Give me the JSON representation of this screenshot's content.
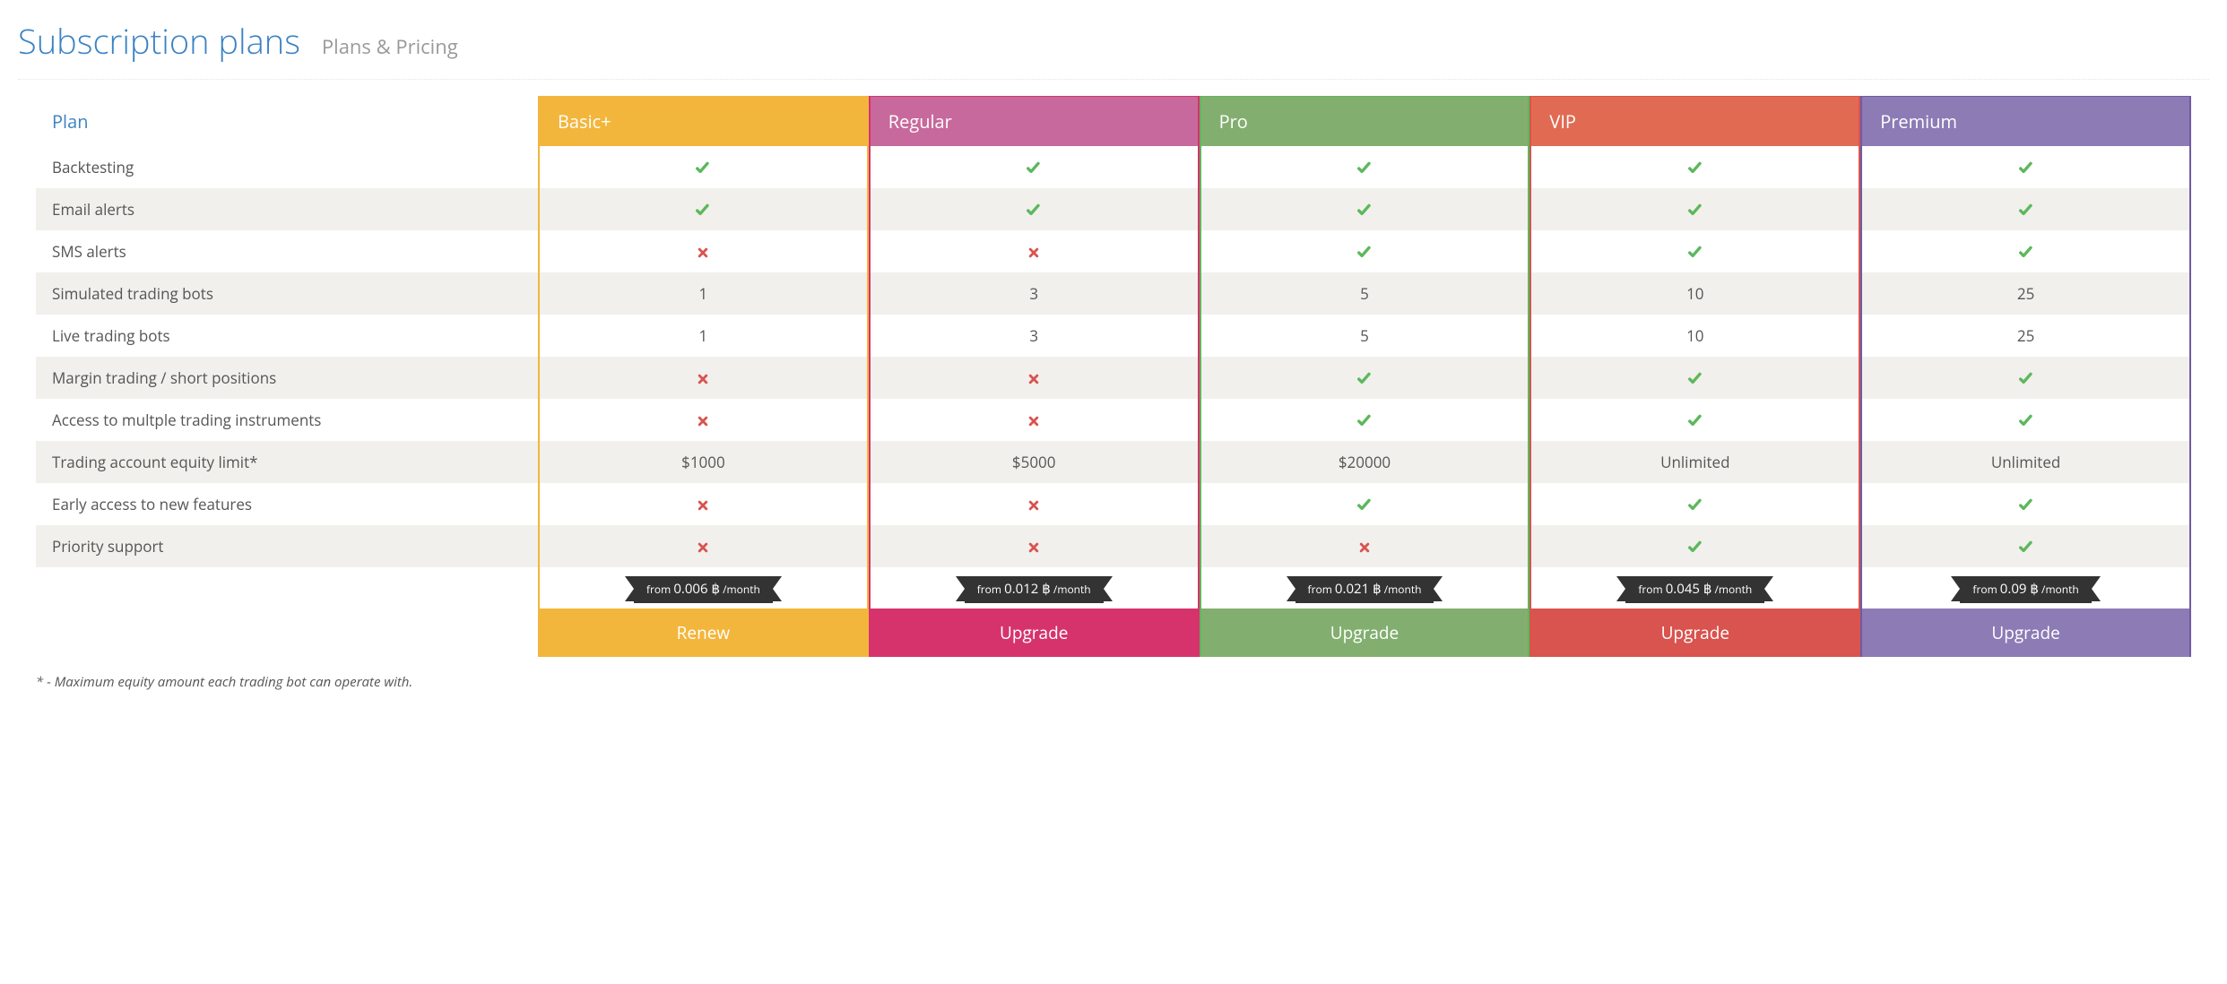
{
  "header": {
    "title": "Subscription plans",
    "subtitle": "Plans & Pricing"
  },
  "table": {
    "plan_column_label": "Plan",
    "colors": {
      "check": "#5cb85c",
      "cross": "#d9534f",
      "ribbon_bg": "#333333",
      "ribbon_text": "#ffffff",
      "stripe_bg": "#f1f0ec",
      "title_color": "#3b82c4"
    },
    "plans": [
      {
        "name": "Basic+",
        "header_bg": "#f3b63c",
        "border": "#f3b63c",
        "action_bg": "#f3b63c",
        "price_prefix": "from ",
        "price_value": "0.006 ฿",
        "price_suffix": " /month",
        "action_label": "Renew"
      },
      {
        "name": "Regular",
        "header_bg": "#c7699d",
        "border": "#d6336c",
        "action_bg": "#d6336c",
        "price_prefix": "from ",
        "price_value": "0.012 ฿",
        "price_suffix": " /month",
        "action_label": "Upgrade"
      },
      {
        "name": "Pro",
        "header_bg": "#82af6f",
        "border": "#5cb85c",
        "action_bg": "#82af6f",
        "price_prefix": "from ",
        "price_value": "0.021 ฿",
        "price_suffix": " /month",
        "action_label": "Upgrade"
      },
      {
        "name": "VIP",
        "header_bg": "#e16b52",
        "border": "#d9534f",
        "action_bg": "#d9534f",
        "price_prefix": "from ",
        "price_value": "0.045 ฿",
        "price_suffix": " /month",
        "action_label": "Upgrade"
      },
      {
        "name": "Premium",
        "header_bg": "#8d7bb5",
        "border": "#6f5ba3",
        "action_bg": "#8d7bb5",
        "price_prefix": "from ",
        "price_value": "0.09 ฿",
        "price_suffix": " /month",
        "action_label": "Upgrade"
      }
    ],
    "features": [
      {
        "label": "Backtesting",
        "values": [
          "check",
          "check",
          "check",
          "check",
          "check"
        ]
      },
      {
        "label": "Email alerts",
        "values": [
          "check",
          "check",
          "check",
          "check",
          "check"
        ]
      },
      {
        "label": "SMS alerts",
        "values": [
          "cross",
          "cross",
          "check",
          "check",
          "check"
        ]
      },
      {
        "label": "Simulated trading bots",
        "values": [
          "1",
          "3",
          "5",
          "10",
          "25"
        ]
      },
      {
        "label": "Live trading bots",
        "values": [
          "1",
          "3",
          "5",
          "10",
          "25"
        ]
      },
      {
        "label": "Margin trading / short positions",
        "values": [
          "cross",
          "cross",
          "check",
          "check",
          "check"
        ]
      },
      {
        "label": "Access to multple trading instruments",
        "values": [
          "cross",
          "cross",
          "check",
          "check",
          "check"
        ]
      },
      {
        "label": "Trading account equity limit*",
        "values": [
          "$1000",
          "$5000",
          "$20000",
          "Unlimited",
          "Unlimited"
        ]
      },
      {
        "label": "Early access to new features",
        "values": [
          "cross",
          "cross",
          "check",
          "check",
          "check"
        ]
      },
      {
        "label": "Priority support",
        "values": [
          "cross",
          "cross",
          "cross",
          "check",
          "check"
        ]
      }
    ]
  },
  "footnote": "* - Maximum equity amount each trading bot can operate with."
}
